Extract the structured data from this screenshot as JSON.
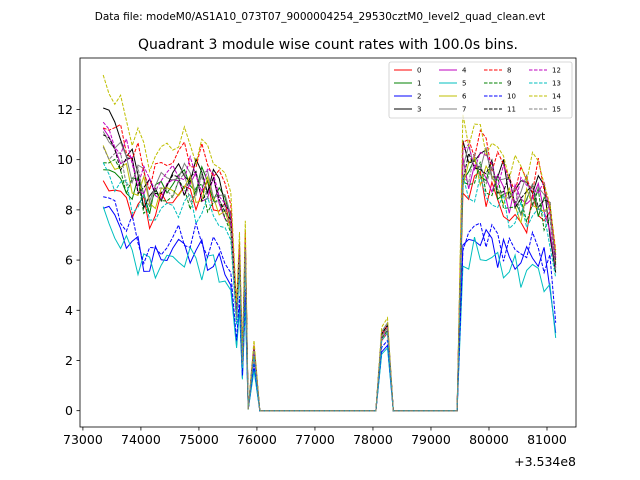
{
  "chart_data": {
    "type": "line",
    "suptitle": "Data file: modeM0/AS1A10_073T07_9000004254_29530cztM0_level2_quad_clean.evt",
    "title": "Quadrant 3 module wise count rates with 100.0s bins.",
    "xlabel": "",
    "ylabel": "",
    "x_offset_label": "+3.534e8",
    "xlim": [
      72950,
      81500
    ],
    "ylim": [
      -0.65,
      14.05
    ],
    "xticks": [
      73000,
      74000,
      75000,
      76000,
      77000,
      78000,
      79000,
      80000,
      81000
    ],
    "yticks": [
      0,
      2,
      4,
      6,
      8,
      10,
      12
    ],
    "x_segments": [
      {
        "start": 73350,
        "end": 75950,
        "step": 100
      },
      {
        "start": 75950,
        "end": 78050,
        "step": 100,
        "flat": 0
      },
      {
        "start": 78050,
        "end": 78350,
        "step": 100
      },
      {
        "start": 78350,
        "end": 79450,
        "step": 100,
        "flat": 0
      },
      {
        "start": 79450,
        "end": 81150,
        "step": 100
      }
    ],
    "legend_position": "upper-right",
    "series": [
      {
        "name": "0",
        "color": "#ff0000",
        "dash": "solid",
        "level": [
          9.3,
          8.5,
          7.8,
          8.7,
          8.5,
          7.5,
          3.8,
          2.2,
          3.1,
          8.5,
          9.2,
          7.4,
          8.0,
          7.6
        ]
      },
      {
        "name": "1",
        "color": "#008000",
        "dash": "solid",
        "level": [
          10.0,
          9.0,
          8.5,
          9.3,
          9.0,
          7.8,
          3.9,
          2.4,
          3.3,
          9.3,
          9.7,
          8.2,
          8.5,
          7.7
        ]
      },
      {
        "name": "2",
        "color": "#0000ff",
        "dash": "solid",
        "level": [
          8.4,
          7.2,
          5.8,
          6.6,
          6.0,
          5.2,
          2.6,
          1.7,
          2.6,
          6.2,
          7.0,
          5.9,
          6.3,
          4.6
        ]
      },
      {
        "name": "3",
        "color": "#000000",
        "dash": "solid",
        "level": [
          12.1,
          11.0,
          8.2,
          9.6,
          9.3,
          8.1,
          4.1,
          2.6,
          3.4,
          10.0,
          10.2,
          8.8,
          9.2,
          7.0
        ]
      },
      {
        "name": "4",
        "color": "#bf00bf",
        "dash": "solid",
        "level": [
          11.0,
          10.2,
          8.6,
          9.1,
          8.7,
          7.6,
          3.8,
          2.3,
          3.2,
          9.6,
          9.5,
          8.4,
          8.6,
          7.2
        ]
      },
      {
        "name": "5",
        "color": "#00bfbf",
        "dash": "solid",
        "level": [
          7.8,
          6.7,
          5.7,
          6.1,
          5.8,
          5.0,
          2.5,
          1.6,
          2.5,
          5.9,
          6.3,
          5.5,
          5.6,
          4.4
        ]
      },
      {
        "name": "6",
        "color": "#bfbf00",
        "dash": "solid",
        "level": [
          10.4,
          9.6,
          8.4,
          8.9,
          8.6,
          7.4,
          3.7,
          2.4,
          3.3,
          9.5,
          9.7,
          8.1,
          8.3,
          7.4
        ]
      },
      {
        "name": "7",
        "color": "#808080",
        "dash": "solid",
        "level": [
          11.2,
          10.3,
          8.9,
          9.5,
          9.0,
          8.0,
          3.9,
          2.5,
          3.5,
          9.9,
          10.0,
          8.7,
          8.8,
          7.5
        ]
      },
      {
        "name": "8",
        "color": "#ff0000",
        "dash": "dashed",
        "level": [
          11.5,
          11.0,
          9.3,
          10.3,
          9.8,
          8.4,
          4.1,
          2.6,
          3.4,
          10.4,
          10.8,
          9.1,
          9.4,
          7.9
        ]
      },
      {
        "name": "9",
        "color": "#008000",
        "dash": "dashed",
        "level": [
          10.1,
          9.5,
          8.2,
          8.8,
          8.4,
          7.3,
          3.6,
          2.3,
          3.2,
          9.1,
          9.3,
          8.0,
          8.2,
          7.2
        ]
      },
      {
        "name": "10",
        "color": "#0000ff",
        "dash": "dashed",
        "level": [
          8.6,
          7.8,
          6.1,
          7.0,
          6.6,
          5.7,
          2.8,
          1.9,
          2.8,
          6.8,
          7.3,
          6.3,
          6.6,
          5.0
        ]
      },
      {
        "name": "11",
        "color": "#000000",
        "dash": "dashed",
        "level": [
          10.9,
          10.1,
          8.7,
          9.2,
          8.8,
          7.8,
          3.8,
          2.5,
          3.4,
          9.6,
          9.8,
          8.5,
          8.7,
          7.3
        ]
      },
      {
        "name": "12",
        "color": "#bf00bf",
        "dash": "dashed",
        "level": [
          11.3,
          10.5,
          9.0,
          9.6,
          9.2,
          8.0,
          3.9,
          2.5,
          3.3,
          10.1,
          10.2,
          8.8,
          9.0,
          7.6
        ]
      },
      {
        "name": "13",
        "color": "#00bfbf",
        "dash": "dashed",
        "level": [
          9.7,
          8.9,
          7.8,
          8.2,
          7.9,
          7.0,
          3.4,
          2.2,
          3.1,
          8.6,
          8.8,
          7.6,
          7.9,
          6.8
        ]
      },
      {
        "name": "14",
        "color": "#bfbf00",
        "dash": "dashed",
        "level": [
          13.3,
          12.0,
          10.0,
          10.8,
          10.2,
          8.9,
          4.3,
          2.8,
          3.7,
          11.5,
          11.0,
          9.6,
          9.9,
          7.8
        ]
      },
      {
        "name": "15",
        "color": "#808080",
        "dash": "dashed",
        "level": [
          10.6,
          9.8,
          8.5,
          9.0,
          8.6,
          7.5,
          3.7,
          2.4,
          3.3,
          9.4,
          9.6,
          8.3,
          8.5,
          7.1
        ]
      }
    ]
  }
}
